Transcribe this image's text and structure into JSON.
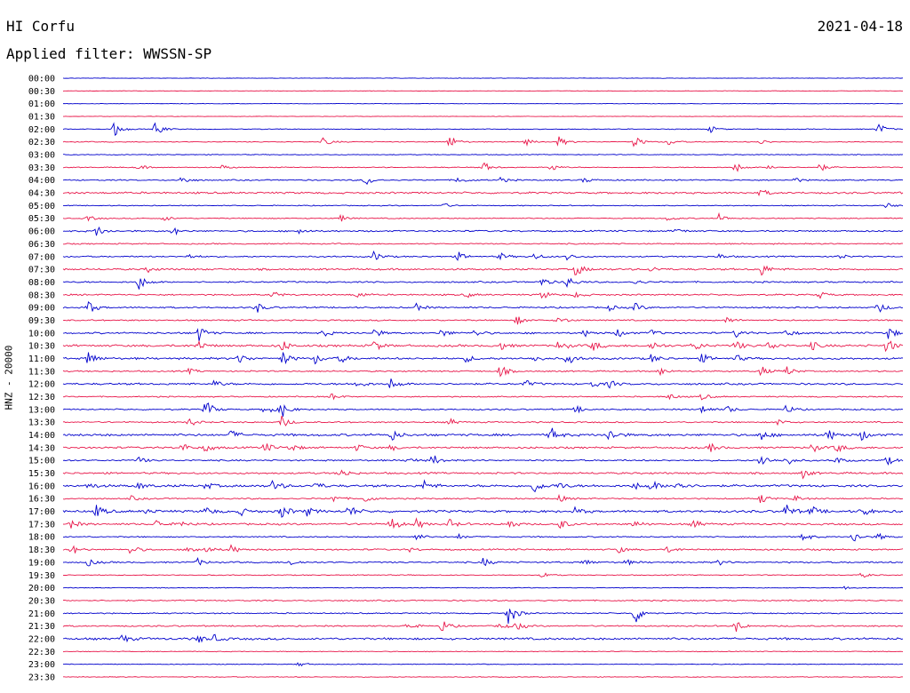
{
  "header": {
    "station": "HI Corfu",
    "date": "2021-04-18",
    "filter": "Applied filter: WWSSN-SP"
  },
  "chart_data": {
    "type": "line",
    "ylabel": "HNZ - 20000",
    "colors": [
      "#0000cc",
      "#e8174a"
    ],
    "rows": [
      {
        "label": "00:00",
        "noise": 0.3,
        "events": []
      },
      {
        "label": "00:30",
        "noise": 0.3,
        "events": []
      },
      {
        "label": "01:00",
        "noise": 0.3,
        "events": []
      },
      {
        "label": "01:30",
        "noise": 0.3,
        "events": []
      },
      {
        "label": "02:00",
        "noise": 0.5,
        "events": [
          [
            0.06,
            9
          ],
          [
            0.11,
            8
          ],
          [
            0.77,
            4
          ],
          [
            0.97,
            7
          ]
        ]
      },
      {
        "label": "02:30",
        "noise": 0.6,
        "events": [
          [
            0.31,
            5
          ],
          [
            0.46,
            8
          ],
          [
            0.55,
            4
          ],
          [
            0.59,
            6
          ],
          [
            0.68,
            7
          ],
          [
            0.72,
            4
          ],
          [
            0.83,
            3
          ]
        ]
      },
      {
        "label": "03:00",
        "noise": 0.5,
        "events": []
      },
      {
        "label": "03:30",
        "noise": 0.6,
        "events": [
          [
            0.09,
            3
          ],
          [
            0.19,
            3
          ],
          [
            0.5,
            6
          ],
          [
            0.58,
            5
          ],
          [
            0.8,
            6
          ],
          [
            0.84,
            3
          ],
          [
            0.9,
            5
          ]
        ]
      },
      {
        "label": "04:00",
        "noise": 0.8,
        "events": [
          [
            0.14,
            5
          ],
          [
            0.36,
            6
          ],
          [
            0.47,
            4
          ],
          [
            0.52,
            3
          ],
          [
            0.62,
            3
          ],
          [
            0.87,
            3
          ]
        ]
      },
      {
        "label": "04:30",
        "noise": 1.2,
        "events": [
          [
            0.83,
            4
          ]
        ]
      },
      {
        "label": "05:00",
        "noise": 0.6,
        "events": [
          [
            0.45,
            4
          ],
          [
            0.98,
            3
          ]
        ]
      },
      {
        "label": "05:30",
        "noise": 0.7,
        "events": [
          [
            0.03,
            3
          ],
          [
            0.12,
            3
          ],
          [
            0.33,
            4
          ],
          [
            0.72,
            3
          ],
          [
            0.78,
            5
          ]
        ]
      },
      {
        "label": "06:00",
        "noise": 1.0,
        "events": [
          [
            0.04,
            6
          ],
          [
            0.13,
            5
          ],
          [
            0.28,
            4
          ],
          [
            0.73,
            3
          ]
        ]
      },
      {
        "label": "06:30",
        "noise": 0.8,
        "events": []
      },
      {
        "label": "07:00",
        "noise": 0.9,
        "events": [
          [
            0.15,
            3
          ],
          [
            0.37,
            6
          ],
          [
            0.47,
            5
          ],
          [
            0.52,
            4
          ],
          [
            0.56,
            4
          ],
          [
            0.6,
            4
          ],
          [
            0.78,
            3
          ],
          [
            0.92,
            4
          ]
        ]
      },
      {
        "label": "07:30",
        "noise": 1.2,
        "events": [
          [
            0.1,
            3
          ],
          [
            0.61,
            8
          ],
          [
            0.7,
            3
          ],
          [
            0.83,
            8
          ]
        ]
      },
      {
        "label": "08:00",
        "noise": 1.0,
        "events": [
          [
            0.09,
            9
          ],
          [
            0.57,
            5
          ],
          [
            0.6,
            7
          ],
          [
            0.68,
            3
          ]
        ]
      },
      {
        "label": "08:30",
        "noise": 1.0,
        "events": [
          [
            0.25,
            4
          ],
          [
            0.35,
            4
          ],
          [
            0.48,
            3
          ],
          [
            0.57,
            5
          ],
          [
            0.61,
            4
          ],
          [
            0.9,
            4
          ]
        ]
      },
      {
        "label": "09:00",
        "noise": 1.0,
        "events": [
          [
            0.03,
            8
          ],
          [
            0.23,
            6
          ],
          [
            0.42,
            4
          ],
          [
            0.65,
            3
          ],
          [
            0.68,
            5
          ],
          [
            0.97,
            6
          ]
        ]
      },
      {
        "label": "09:30",
        "noise": 0.9,
        "events": [
          [
            0.54,
            5
          ],
          [
            0.59,
            5
          ],
          [
            0.79,
            4
          ]
        ]
      },
      {
        "label": "10:00",
        "noise": 1.1,
        "events": [
          [
            0.16,
            11
          ],
          [
            0.31,
            4
          ],
          [
            0.37,
            5
          ],
          [
            0.45,
            5
          ],
          [
            0.49,
            4
          ],
          [
            0.62,
            4
          ],
          [
            0.66,
            5
          ],
          [
            0.7,
            4
          ],
          [
            0.8,
            5
          ],
          [
            0.86,
            5
          ],
          [
            0.98,
            9
          ]
        ]
      },
      {
        "label": "10:30",
        "noise": 1.4,
        "events": [
          [
            0.16,
            6
          ],
          [
            0.26,
            7
          ],
          [
            0.37,
            6
          ],
          [
            0.52,
            5
          ],
          [
            0.59,
            7
          ],
          [
            0.63,
            6
          ],
          [
            0.7,
            6
          ],
          [
            0.75,
            7
          ],
          [
            0.8,
            6
          ],
          [
            0.84,
            6
          ],
          [
            0.89,
            5
          ],
          [
            0.98,
            9
          ]
        ]
      },
      {
        "label": "11:00",
        "noise": 1.3,
        "events": [
          [
            0.03,
            9
          ],
          [
            0.21,
            6
          ],
          [
            0.26,
            9
          ],
          [
            0.3,
            6
          ],
          [
            0.33,
            5
          ],
          [
            0.48,
            4
          ],
          [
            0.56,
            4
          ],
          [
            0.6,
            7
          ],
          [
            0.7,
            5
          ],
          [
            0.76,
            5
          ],
          [
            0.8,
            4
          ]
        ]
      },
      {
        "label": "11:30",
        "noise": 0.9,
        "events": [
          [
            0.15,
            3
          ],
          [
            0.52,
            7
          ],
          [
            0.71,
            5
          ],
          [
            0.83,
            6
          ],
          [
            0.86,
            6
          ]
        ]
      },
      {
        "label": "12:00",
        "noise": 1.2,
        "events": [
          [
            0.18,
            4
          ],
          [
            0.35,
            5
          ],
          [
            0.39,
            7
          ],
          [
            0.55,
            4
          ],
          [
            0.63,
            4
          ],
          [
            0.65,
            4
          ]
        ]
      },
      {
        "label": "12:30",
        "noise": 0.8,
        "events": [
          [
            0.32,
            4
          ],
          [
            0.72,
            4
          ],
          [
            0.76,
            4
          ]
        ]
      },
      {
        "label": "13:00",
        "noise": 0.9,
        "events": [
          [
            0.17,
            11
          ],
          [
            0.24,
            7
          ],
          [
            0.26,
            9
          ],
          [
            0.61,
            4
          ],
          [
            0.76,
            5
          ],
          [
            0.79,
            4
          ],
          [
            0.86,
            5
          ]
        ]
      },
      {
        "label": "13:30",
        "noise": 0.9,
        "events": [
          [
            0.15,
            5
          ],
          [
            0.26,
            7
          ],
          [
            0.46,
            4
          ],
          [
            0.85,
            4
          ]
        ]
      },
      {
        "label": "14:00",
        "noise": 1.5,
        "events": [
          [
            0.2,
            5
          ],
          [
            0.39,
            7
          ],
          [
            0.58,
            9
          ],
          [
            0.65,
            8
          ],
          [
            0.83,
            6
          ],
          [
            0.91,
            7
          ],
          [
            0.95,
            6
          ]
        ]
      },
      {
        "label": "14:30",
        "noise": 1.2,
        "events": [
          [
            0.14,
            6
          ],
          [
            0.17,
            5
          ],
          [
            0.24,
            6
          ],
          [
            0.27,
            5
          ],
          [
            0.35,
            4
          ],
          [
            0.39,
            3
          ],
          [
            0.77,
            5
          ],
          [
            0.89,
            6
          ],
          [
            0.92,
            6
          ]
        ]
      },
      {
        "label": "15:00",
        "noise": 1.0,
        "events": [
          [
            0.09,
            4
          ],
          [
            0.41,
            4
          ],
          [
            0.44,
            7
          ],
          [
            0.83,
            9
          ],
          [
            0.86,
            6
          ],
          [
            0.92,
            4
          ],
          [
            0.98,
            5
          ]
        ]
      },
      {
        "label": "15:30",
        "noise": 1.2,
        "events": [
          [
            0.33,
            6
          ],
          [
            0.88,
            5
          ]
        ]
      },
      {
        "label": "16:00",
        "noise": 1.5,
        "events": [
          [
            0.03,
            4
          ],
          [
            0.09,
            4
          ],
          [
            0.17,
            4
          ],
          [
            0.25,
            7
          ],
          [
            0.3,
            4
          ],
          [
            0.43,
            6
          ],
          [
            0.56,
            8
          ],
          [
            0.59,
            4
          ],
          [
            0.68,
            4
          ],
          [
            0.7,
            6
          ],
          [
            0.73,
            8
          ]
        ]
      },
      {
        "label": "16:30",
        "noise": 0.9,
        "events": [
          [
            0.08,
            3
          ],
          [
            0.32,
            5
          ],
          [
            0.36,
            4
          ],
          [
            0.59,
            4
          ],
          [
            0.83,
            6
          ],
          [
            0.87,
            4
          ]
        ]
      },
      {
        "label": "17:00",
        "noise": 1.5,
        "events": [
          [
            0.04,
            7
          ],
          [
            0.1,
            3
          ],
          [
            0.17,
            5
          ],
          [
            0.21,
            5
          ],
          [
            0.26,
            8
          ],
          [
            0.29,
            5
          ],
          [
            0.34,
            7
          ],
          [
            0.61,
            5
          ],
          [
            0.86,
            8
          ],
          [
            0.89,
            6
          ],
          [
            0.95,
            6
          ]
        ]
      },
      {
        "label": "17:30",
        "noise": 1.2,
        "events": [
          [
            0.01,
            5
          ],
          [
            0.11,
            5
          ],
          [
            0.14,
            4
          ],
          [
            0.39,
            9
          ],
          [
            0.42,
            6
          ],
          [
            0.46,
            5
          ],
          [
            0.53,
            6
          ],
          [
            0.59,
            7
          ],
          [
            0.68,
            4
          ],
          [
            0.75,
            5
          ]
        ]
      },
      {
        "label": "18:00",
        "noise": 0.8,
        "events": [
          [
            0.42,
            4
          ],
          [
            0.47,
            3
          ],
          [
            0.88,
            6
          ],
          [
            0.94,
            7
          ],
          [
            0.97,
            4
          ]
        ]
      },
      {
        "label": "18:30",
        "noise": 1.0,
        "events": [
          [
            0.01,
            6
          ],
          [
            0.08,
            6
          ],
          [
            0.15,
            5
          ],
          [
            0.17,
            4
          ],
          [
            0.2,
            5
          ],
          [
            0.41,
            3
          ],
          [
            0.66,
            4
          ],
          [
            0.72,
            4
          ]
        ]
      },
      {
        "label": "19:00",
        "noise": 1.0,
        "events": [
          [
            0.03,
            4
          ],
          [
            0.16,
            4
          ],
          [
            0.27,
            4
          ],
          [
            0.5,
            5
          ],
          [
            0.62,
            4
          ],
          [
            0.67,
            3
          ],
          [
            0.78,
            3
          ]
        ]
      },
      {
        "label": "19:30",
        "noise": 0.6,
        "events": [
          [
            0.57,
            3
          ],
          [
            0.95,
            3
          ]
        ]
      },
      {
        "label": "20:00",
        "noise": 0.5,
        "events": [
          [
            0.93,
            3
          ]
        ]
      },
      {
        "label": "20:30",
        "noise": 0.8,
        "events": []
      },
      {
        "label": "21:00",
        "noise": 0.8,
        "events": [
          [
            0.53,
            15
          ],
          [
            0.68,
            13
          ]
        ]
      },
      {
        "label": "21:30",
        "noise": 0.9,
        "events": [
          [
            0.41,
            5
          ],
          [
            0.45,
            8
          ],
          [
            0.52,
            4
          ],
          [
            0.54,
            5
          ],
          [
            0.8,
            7
          ]
        ]
      },
      {
        "label": "22:00",
        "noise": 1.4,
        "events": [
          [
            0.07,
            5
          ],
          [
            0.16,
            5
          ],
          [
            0.18,
            4
          ]
        ]
      },
      {
        "label": "22:30",
        "noise": 0.5,
        "events": []
      },
      {
        "label": "23:00",
        "noise": 0.5,
        "events": [
          [
            0.28,
            3
          ]
        ]
      },
      {
        "label": "23:30",
        "noise": 0.5,
        "events": []
      }
    ]
  }
}
